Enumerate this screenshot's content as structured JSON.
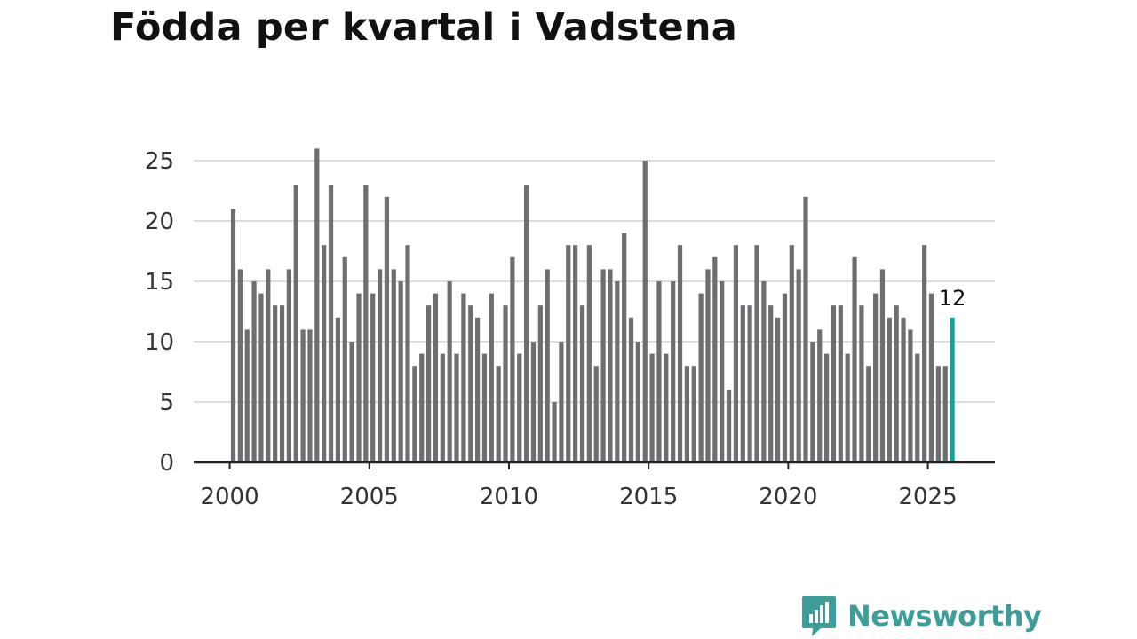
{
  "title": "Födda per kvartal i Vadstena",
  "brand": {
    "name": "Newsworthy",
    "color": "#3d9e99",
    "icon": "newsworthy-logo-icon"
  },
  "colors": {
    "bar": "#6e6e72",
    "highlight": "#1a9e96",
    "grid": "#dddddd",
    "axis": "#222222"
  },
  "chart_data": {
    "type": "bar",
    "title": "Födda per kvartal i Vadstena",
    "xlabel": "",
    "ylabel": "",
    "ylim": [
      0,
      27
    ],
    "yticks": [
      0,
      5,
      10,
      15,
      20,
      25
    ],
    "xticks": [
      "2000",
      "2005",
      "2010",
      "2015",
      "2020",
      "2025"
    ],
    "grid": true,
    "start": {
      "year": 2000,
      "quarter": 1
    },
    "values": [
      21,
      16,
      11,
      15,
      14,
      16,
      13,
      13,
      16,
      23,
      11,
      11,
      26,
      18,
      23,
      12,
      17,
      10,
      14,
      23,
      14,
      16,
      22,
      16,
      15,
      18,
      8,
      9,
      13,
      14,
      9,
      15,
      9,
      14,
      13,
      12,
      9,
      14,
      8,
      13,
      17,
      9,
      23,
      10,
      13,
      16,
      5,
      10,
      18,
      18,
      13,
      18,
      8,
      16,
      16,
      15,
      19,
      12,
      10,
      25,
      9,
      15,
      9,
      15,
      18,
      8,
      8,
      14,
      16,
      17,
      15,
      6,
      18,
      13,
      13,
      18,
      15,
      13,
      12,
      14,
      18,
      16,
      22,
      10,
      11,
      9,
      13,
      13,
      9,
      17,
      13,
      8,
      14,
      16,
      12,
      13,
      12,
      11,
      9,
      18,
      14,
      8,
      8,
      12
    ],
    "highlight_index": 103,
    "annotation": {
      "index": 103,
      "text": "12"
    }
  }
}
